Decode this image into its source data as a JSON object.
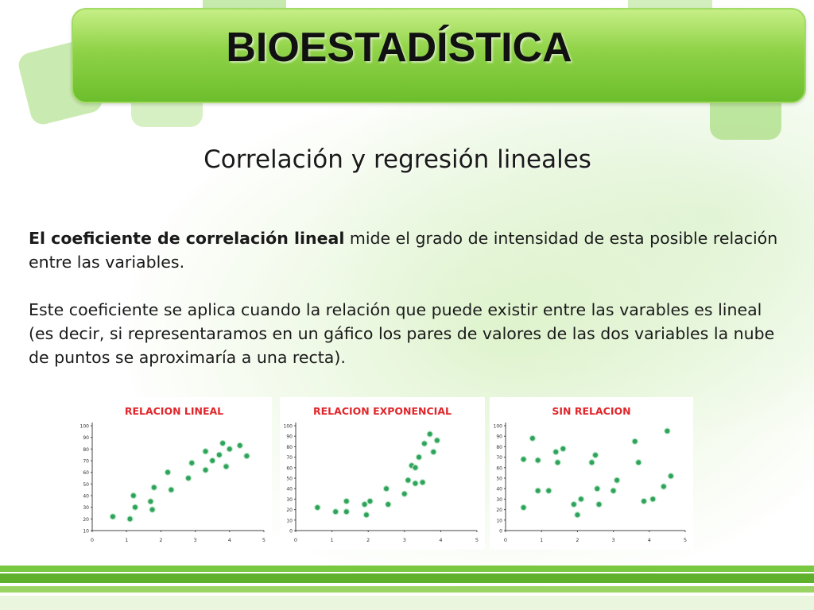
{
  "slide": {
    "title": "BIOESTADÍSTICA",
    "subtitle": "Correlación y regresión lineales",
    "paragraph1_bold": "El coeficiente de correlación lineal",
    "paragraph1_rest": " mide el grado de intensidad de esta posible relación entre las variables.",
    "paragraph2": "Este coeficiente se aplica cuando la relación que puede existir entre las varables es lineal (es decir, si representaramos en un gáfico los pares de valores de las dos variables la nube de puntos se aproximaría a una recta)."
  },
  "colors": {
    "title_bar": "#8fd247",
    "chart_title": "#e0262b",
    "point": "#2fa35b",
    "footer": "#5fb02a"
  },
  "chart_data": [
    {
      "type": "scatter",
      "title": "RELACION LINEAL",
      "xlabel": "",
      "ylabel": "",
      "xlim": [
        0,
        5
      ],
      "ylim": [
        10,
        100
      ],
      "x_ticks": [
        "0",
        "1",
        "2",
        "3",
        "4",
        "5"
      ],
      "y_ticks": [
        "10",
        "20",
        "30",
        "40",
        "50",
        "60",
        "70",
        "80",
        "90",
        "100"
      ],
      "grid": false,
      "points": [
        {
          "x": 0.6,
          "y": 22
        },
        {
          "x": 1.1,
          "y": 20
        },
        {
          "x": 1.2,
          "y": 40
        },
        {
          "x": 1.25,
          "y": 30
        },
        {
          "x": 1.7,
          "y": 35
        },
        {
          "x": 1.75,
          "y": 28
        },
        {
          "x": 1.8,
          "y": 47
        },
        {
          "x": 2.2,
          "y": 60
        },
        {
          "x": 2.3,
          "y": 45
        },
        {
          "x": 2.8,
          "y": 55
        },
        {
          "x": 2.9,
          "y": 68
        },
        {
          "x": 3.3,
          "y": 78
        },
        {
          "x": 3.3,
          "y": 62
        },
        {
          "x": 3.5,
          "y": 70
        },
        {
          "x": 3.7,
          "y": 75
        },
        {
          "x": 3.8,
          "y": 85
        },
        {
          "x": 3.9,
          "y": 65
        },
        {
          "x": 4.0,
          "y": 80
        },
        {
          "x": 4.3,
          "y": 83
        },
        {
          "x": 4.5,
          "y": 74
        }
      ]
    },
    {
      "type": "scatter",
      "title": "RELACION EXPONENCIAL",
      "xlabel": "",
      "ylabel": "",
      "xlim": [
        0,
        5
      ],
      "ylim": [
        0,
        100
      ],
      "x_ticks": [
        "0",
        "1",
        "2",
        "3",
        "4",
        "5"
      ],
      "y_ticks": [
        "0",
        "10",
        "20",
        "30",
        "40",
        "50",
        "60",
        "70",
        "80",
        "90",
        "100"
      ],
      "grid": false,
      "points": [
        {
          "x": 0.6,
          "y": 22
        },
        {
          "x": 1.1,
          "y": 18
        },
        {
          "x": 1.4,
          "y": 28
        },
        {
          "x": 1.4,
          "y": 18
        },
        {
          "x": 1.9,
          "y": 25
        },
        {
          "x": 1.95,
          "y": 15
        },
        {
          "x": 2.05,
          "y": 28
        },
        {
          "x": 2.5,
          "y": 40
        },
        {
          "x": 2.55,
          "y": 25
        },
        {
          "x": 3.0,
          "y": 35
        },
        {
          "x": 3.1,
          "y": 48
        },
        {
          "x": 3.2,
          "y": 62
        },
        {
          "x": 3.3,
          "y": 45
        },
        {
          "x": 3.4,
          "y": 70
        },
        {
          "x": 3.5,
          "y": 46
        },
        {
          "x": 3.55,
          "y": 83
        },
        {
          "x": 3.7,
          "y": 92
        },
        {
          "x": 3.8,
          "y": 75
        },
        {
          "x": 3.9,
          "y": 86
        },
        {
          "x": 3.3,
          "y": 60
        }
      ]
    },
    {
      "type": "scatter",
      "title": "SIN RELACION",
      "xlabel": "",
      "ylabel": "",
      "xlim": [
        0,
        5
      ],
      "ylim": [
        0,
        100
      ],
      "x_ticks": [
        "0",
        "1",
        "2",
        "3",
        "4",
        "5"
      ],
      "y_ticks": [
        "0",
        "10",
        "20",
        "30",
        "40",
        "50",
        "60",
        "70",
        "80",
        "90",
        "100"
      ],
      "grid": false,
      "points": [
        {
          "x": 0.5,
          "y": 68
        },
        {
          "x": 0.5,
          "y": 22
        },
        {
          "x": 0.75,
          "y": 88
        },
        {
          "x": 0.9,
          "y": 67
        },
        {
          "x": 0.9,
          "y": 38
        },
        {
          "x": 1.2,
          "y": 38
        },
        {
          "x": 1.4,
          "y": 75
        },
        {
          "x": 1.45,
          "y": 65
        },
        {
          "x": 1.6,
          "y": 78
        },
        {
          "x": 1.9,
          "y": 25
        },
        {
          "x": 2.0,
          "y": 15
        },
        {
          "x": 2.1,
          "y": 30
        },
        {
          "x": 2.4,
          "y": 65
        },
        {
          "x": 2.5,
          "y": 72
        },
        {
          "x": 2.55,
          "y": 40
        },
        {
          "x": 2.6,
          "y": 25
        },
        {
          "x": 3.0,
          "y": 38
        },
        {
          "x": 3.1,
          "y": 48
        },
        {
          "x": 3.6,
          "y": 85
        },
        {
          "x": 3.7,
          "y": 65
        },
        {
          "x": 3.85,
          "y": 28
        },
        {
          "x": 4.1,
          "y": 30
        },
        {
          "x": 4.4,
          "y": 42
        },
        {
          "x": 4.5,
          "y": 95
        },
        {
          "x": 4.6,
          "y": 52
        }
      ]
    }
  ]
}
